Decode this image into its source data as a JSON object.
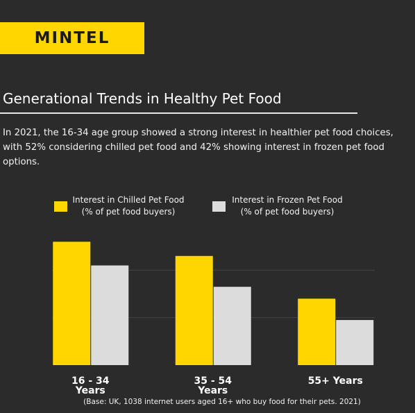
{
  "header": {
    "logo": "MINTEL",
    "title": "Generational Trends in Healthy Pet Food",
    "text": "In 2021, the 16-34 age group showed a strong interest in healthier pet food choices, with 52% considering chilled pet food and 42% showing interest in frozen pet food options."
  },
  "chart_data": {
    "type": "bar",
    "categories": [
      "16 - 34\nYears",
      "35 - 54\nYears",
      "55+ Years"
    ],
    "series": [
      {
        "name": "Interest in Chilled Pet Food\n(% of pet food buyers)",
        "color": "#ffd600",
        "values": [
          52,
          46,
          28
        ]
      },
      {
        "name": "Interest in Frozen Pet Food\n(% of pet food buyers)",
        "color": "#dcdcdc",
        "values": [
          42,
          33,
          19
        ]
      }
    ],
    "ylim": [
      0,
      55
    ],
    "yticks": [
      20,
      40
    ],
    "grid": true,
    "note": "(Base: UK, 1038 internet users aged 16+ who buy food for their pets. 2021)"
  }
}
